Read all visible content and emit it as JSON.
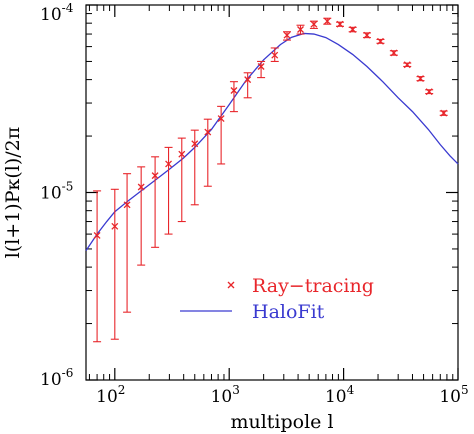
{
  "chart_data": {
    "type": "scatter",
    "title": "",
    "xlabel": "multipole l",
    "ylabel": "l(l+1)Pκ(l)/2π",
    "xscale": "log",
    "yscale": "log",
    "xlim": [
      56,
      100000
    ],
    "ylim": [
      1e-06,
      0.0001
    ],
    "x_ticks": [
      {
        "value": 100,
        "base": "10",
        "exp": "2"
      },
      {
        "value": 1000,
        "base": "10",
        "exp": "3"
      },
      {
        "value": 10000,
        "base": "10",
        "exp": "4"
      },
      {
        "value": 100000,
        "base": "10",
        "exp": "5"
      }
    ],
    "y_ticks": [
      {
        "value": 1e-06,
        "base": "10",
        "exp": "-6"
      },
      {
        "value": 1e-05,
        "base": "10",
        "exp": "-5"
      },
      {
        "value": 0.0001,
        "base": "10",
        "exp": "-4"
      }
    ],
    "legend_position": "lower-right",
    "grid": false,
    "series": [
      {
        "name": "Ray−tracing",
        "kind": "points_with_errorbars",
        "marker": "x",
        "color": "#e8262b",
        "points": [
          {
            "x": 70,
            "y": 5.9e-06,
            "lo": 1.6e-06,
            "hi": 1.02e-05
          },
          {
            "x": 100,
            "y": 6.6e-06,
            "lo": 1.65e-06,
            "hi": 1.04e-05
          },
          {
            "x": 128,
            "y": 8.6e-06,
            "lo": 2.3e-06,
            "hi": 1.26e-05
          },
          {
            "x": 170,
            "y": 1.07e-05,
            "lo": 4.1e-06,
            "hi": 1.37e-05
          },
          {
            "x": 225,
            "y": 1.23e-05,
            "lo": 5.1e-06,
            "hi": 1.55e-05
          },
          {
            "x": 295,
            "y": 1.42e-05,
            "lo": 6e-06,
            "hi": 1.74e-05
          },
          {
            "x": 385,
            "y": 1.6e-05,
            "lo": 7e-06,
            "hi": 1.95e-05
          },
          {
            "x": 500,
            "y": 1.82e-05,
            "lo": 8.6e-06,
            "hi": 2.15e-05
          },
          {
            "x": 650,
            "y": 2.1e-05,
            "lo": 1.08e-05,
            "hi": 2.46e-05
          },
          {
            "x": 850,
            "y": 2.48e-05,
            "lo": 1.42e-05,
            "hi": 2.88e-05
          },
          {
            "x": 1100,
            "y": 3.5e-05,
            "lo": 2.7e-05,
            "hi": 3.9e-05
          },
          {
            "x": 1450,
            "y": 4e-05,
            "lo": 3.2e-05,
            "hi": 4.35e-05
          },
          {
            "x": 1900,
            "y": 4.7e-05,
            "lo": 4.1e-05,
            "hi": 5e-05
          },
          {
            "x": 2500,
            "y": 5.4e-05,
            "lo": 5e-05,
            "hi": 5.9e-05
          },
          {
            "x": 3200,
            "y": 6.9e-05,
            "lo": 6.5e-05,
            "hi": 7.2e-05
          },
          {
            "x": 4200,
            "y": 7.4e-05,
            "lo": 7e-05,
            "hi": 7.8e-05
          },
          {
            "x": 5500,
            "y": 7.9e-05,
            "lo": 7.5e-05,
            "hi": 8.2e-05
          },
          {
            "x": 7200,
            "y": 8.2e-05,
            "lo": 7.9e-05,
            "hi": 8.5e-05
          },
          {
            "x": 9300,
            "y": 7.9e-05,
            "lo": 7.7e-05,
            "hi": 8.1e-05
          },
          {
            "x": 12000,
            "y": 7.4e-05,
            "lo": 7.2e-05,
            "hi": 7.6e-05
          },
          {
            "x": 16000,
            "y": 6.9e-05,
            "lo": 6.7e-05,
            "hi": 7.1e-05
          },
          {
            "x": 21000,
            "y": 6.4e-05,
            "lo": 6.25e-05,
            "hi": 6.55e-05
          },
          {
            "x": 27500,
            "y": 5.55e-05,
            "lo": 5.4e-05,
            "hi": 5.7e-05
          },
          {
            "x": 36000,
            "y": 4.8e-05,
            "lo": 4.7e-05,
            "hi": 4.9e-05
          },
          {
            "x": 47000,
            "y": 4.05e-05,
            "lo": 3.95e-05,
            "hi": 4.15e-05
          },
          {
            "x": 56000,
            "y": 3.45e-05,
            "lo": 3.37e-05,
            "hi": 3.53e-05
          },
          {
            "x": 75000,
            "y": 2.65e-05,
            "lo": 2.58e-05,
            "hi": 2.72e-05
          }
        ]
      },
      {
        "name": "HaloFit",
        "kind": "line",
        "color": "#3a3ad0",
        "x": [
          56,
          70,
          85,
          100,
          130,
          170,
          220,
          300,
          400,
          500,
          700,
          1000,
          1400,
          2000,
          2800,
          3500,
          4500,
          5500,
          7000,
          9000,
          12000,
          16000,
          22000,
          30000,
          40000,
          55000,
          70000,
          85000,
          100000
        ],
        "y": [
          4.9e-06,
          6e-06,
          7e-06,
          7.9e-06,
          9e-06,
          1.02e-05,
          1.15e-05,
          1.33e-05,
          1.53e-05,
          1.74e-05,
          2.17e-05,
          2.94e-05,
          3.95e-05,
          5.1e-05,
          6.15e-05,
          6.72e-05,
          7.05e-05,
          7e-05,
          6.7e-05,
          6.15e-05,
          5.45e-05,
          4.7e-05,
          3.9e-05,
          3.2e-05,
          2.7e-05,
          2.17e-05,
          1.8e-05,
          1.57e-05,
          1.42e-05
        ]
      }
    ]
  }
}
